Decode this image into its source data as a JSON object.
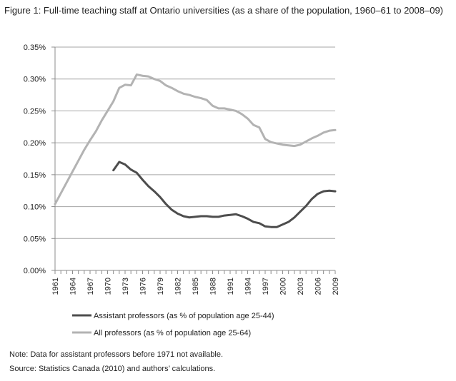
{
  "figure_title": "Figure 1: Full-time teaching staff at Ontario universities (as a share of the population, 1960–61  to 2008–09)",
  "note": "Note: Data for assistant professors before 1971 not available.",
  "source": "Source: Statistics Canada (2010) and authors’ calculations.",
  "chart_data": {
    "type": "line",
    "title": "Figure 1: Full-time teaching staff at Ontario universities (as a share of the population, 1960–61  to 2008–09)",
    "xlabel": "",
    "ylabel": "",
    "x": [
      1961,
      1962,
      1963,
      1964,
      1965,
      1966,
      1967,
      1968,
      1969,
      1970,
      1971,
      1972,
      1973,
      1974,
      1975,
      1976,
      1977,
      1978,
      1979,
      1980,
      1981,
      1982,
      1983,
      1984,
      1985,
      1986,
      1987,
      1988,
      1989,
      1990,
      1991,
      1992,
      1993,
      1994,
      1995,
      1996,
      1997,
      1998,
      1999,
      2000,
      2001,
      2002,
      2003,
      2004,
      2005,
      2006,
      2007,
      2008,
      2009
    ],
    "x_tick_labels": [
      "1961",
      "1964",
      "1967",
      "1970",
      "1973",
      "1976",
      "1979",
      "1982",
      "1985",
      "1988",
      "1991",
      "1994",
      "1997",
      "2000",
      "2003",
      "2006",
      "2009"
    ],
    "ylim": [
      0,
      0.35
    ],
    "y_ticks": [
      0,
      0.05,
      0.1,
      0.15,
      0.2,
      0.25,
      0.3,
      0.35
    ],
    "y_tick_labels": [
      "0.00%",
      "0.05%",
      "0.10%",
      "0.15%",
      "0.20%",
      "0.25%",
      "0.30%",
      "0.35%"
    ],
    "grid": true,
    "legend_position": "bottom",
    "series": [
      {
        "name": "Assistant professors (as % of population age 25-44)",
        "color": "#4d4d4d",
        "values": [
          null,
          null,
          null,
          null,
          null,
          null,
          null,
          null,
          null,
          null,
          0.157,
          0.17,
          0.166,
          0.158,
          0.153,
          0.142,
          0.132,
          0.124,
          0.115,
          0.104,
          0.095,
          0.089,
          0.085,
          0.083,
          0.084,
          0.085,
          0.085,
          0.084,
          0.084,
          0.086,
          0.087,
          0.088,
          0.085,
          0.081,
          0.076,
          0.074,
          0.069,
          0.068,
          0.068,
          0.072,
          0.076,
          0.083,
          0.092,
          0.101,
          0.112,
          0.12,
          0.124,
          0.125,
          0.124
        ]
      },
      {
        "name": "All professors (as % of population age 25-64)",
        "color": "#b3b3b3",
        "values": [
          0.104,
          0.121,
          0.138,
          0.155,
          0.172,
          0.189,
          0.204,
          0.218,
          0.235,
          0.25,
          0.265,
          0.286,
          0.291,
          0.29,
          0.307,
          0.305,
          0.304,
          0.3,
          0.297,
          0.29,
          0.286,
          0.281,
          0.277,
          0.275,
          0.272,
          0.27,
          0.267,
          0.258,
          0.254,
          0.254,
          0.252,
          0.25,
          0.245,
          0.238,
          0.228,
          0.224,
          0.206,
          0.201,
          0.199,
          0.197,
          0.196,
          0.195,
          0.197,
          0.202,
          0.207,
          0.211,
          0.216,
          0.219,
          0.22
        ]
      }
    ]
  }
}
